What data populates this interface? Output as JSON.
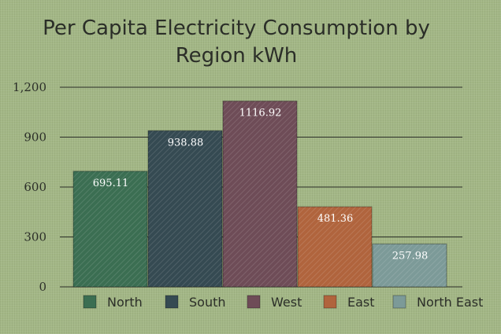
{
  "chart_data": {
    "type": "bar",
    "title_lines": [
      "Per Capita Electricity Consumption by",
      "Region kWh"
    ],
    "categories": [
      "North",
      "South",
      "West",
      "East",
      "North East"
    ],
    "values": [
      695.11,
      938.88,
      1116.92,
      481.36,
      257.98
    ],
    "data_labels": [
      "695.11",
      "938.88",
      "1116.92",
      "481.36",
      "257.98"
    ],
    "colors": [
      "#3b6e52",
      "#354a52",
      "#6e4c57",
      "#b0643d",
      "#7c9a98"
    ],
    "ylim": [
      0,
      1200
    ],
    "y_ticks": [
      0,
      300,
      600,
      900,
      1200
    ],
    "y_tick_labels": [
      "0",
      "300",
      "600",
      "900",
      "1,200"
    ],
    "grid": true,
    "legend_position": "bottom",
    "background_color": "#a3b786"
  }
}
